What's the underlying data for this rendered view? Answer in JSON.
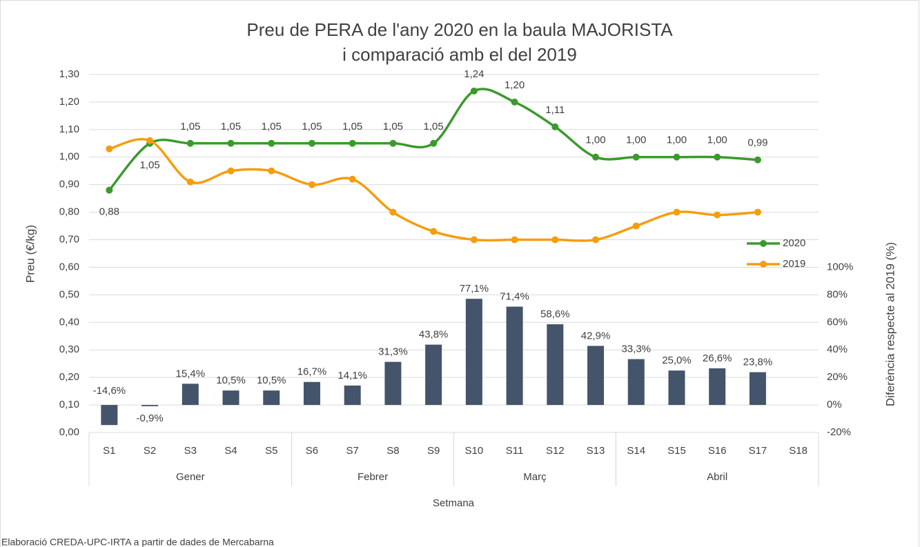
{
  "chart_data": {
    "type": "bar-line",
    "title": [
      "Preu de PERA de l'any 2020 en la baula MAJORISTA",
      "i comparació amb el del 2019"
    ],
    "categories": [
      "S1",
      "S2",
      "S3",
      "S4",
      "S5",
      "S6",
      "S7",
      "S8",
      "S9",
      "S10",
      "S11",
      "S12",
      "S13",
      "S14",
      "S15",
      "S16",
      "S17",
      "S18"
    ],
    "category_groups": [
      {
        "label": "Gener",
        "start": 0,
        "end": 4
      },
      {
        "label": "Febrer",
        "start": 5,
        "end": 8
      },
      {
        "label": "Març",
        "start": 9,
        "end": 12
      },
      {
        "label": "Abril",
        "start": 13,
        "end": 17
      }
    ],
    "x_label": "Setmana",
    "y_label": "Preu (€/kg)",
    "y2_label": "Diferència respecte al 2019 (%)",
    "ylim": [
      0,
      1.3
    ],
    "yticks": [
      {
        "value": 0,
        "label": "0,00"
      },
      {
        "value": 0.1,
        "label": "0,10"
      },
      {
        "value": 0.2,
        "label": "0,20"
      },
      {
        "value": 0.3,
        "label": "0,30"
      },
      {
        "value": 0.4,
        "label": "0,40"
      },
      {
        "value": 0.5,
        "label": "0,50"
      },
      {
        "value": 0.6,
        "label": "0,60"
      },
      {
        "value": 0.7,
        "label": "0,70"
      },
      {
        "value": 0.8,
        "label": "0,80"
      },
      {
        "value": 0.9,
        "label": "0,90"
      },
      {
        "value": 1.0,
        "label": "1,00"
      },
      {
        "value": 1.1,
        "label": "1,10"
      },
      {
        "value": 1.2,
        "label": "1,20"
      },
      {
        "value": 1.3,
        "label": "1,30"
      }
    ],
    "y2lim": [
      -20,
      240
    ],
    "y2ticks": [
      {
        "value": -20,
        "label": "-20%"
      },
      {
        "value": 0,
        "label": "0%"
      },
      {
        "value": 20,
        "label": "20%"
      },
      {
        "value": 40,
        "label": "40%"
      },
      {
        "value": 60,
        "label": "60%"
      },
      {
        "value": 80,
        "label": "80%"
      },
      {
        "value": 100,
        "label": "100%"
      }
    ],
    "grid": true,
    "series": [
      {
        "name": "Diferència",
        "type": "bar",
        "axis": "y2",
        "color": "#44546a",
        "values": [
          -14.6,
          -0.9,
          15.4,
          10.5,
          10.5,
          16.7,
          14.1,
          31.3,
          43.8,
          77.1,
          71.4,
          58.6,
          42.9,
          33.3,
          25.0,
          26.6,
          23.8,
          null
        ],
        "value_labels": [
          "-14,6%",
          "-0,9%",
          "15,4%",
          "10,5%",
          "10,5%",
          "16,7%",
          "14,1%",
          "31,3%",
          "43,8%",
          "77,1%",
          "71,4%",
          "58,6%",
          "42,9%",
          "33,3%",
          "25,0%",
          "26,6%",
          "23,8%",
          null
        ]
      },
      {
        "name": "2020",
        "type": "line",
        "color": "#3a9a2c",
        "values": [
          0.88,
          1.05,
          1.05,
          1.05,
          1.05,
          1.05,
          1.05,
          1.05,
          1.05,
          1.24,
          1.2,
          1.11,
          1.0,
          1.0,
          1.0,
          1.0,
          0.99,
          null
        ],
        "value_labels": [
          "0,88",
          "1,05",
          "1,05",
          "1,05",
          "1,05",
          "1,05",
          "1,05",
          "1,05",
          "1,05",
          "1,24",
          "1,20",
          "1,11",
          "1,00",
          "1,00",
          "1,00",
          "1,00",
          "0,99",
          null
        ]
      },
      {
        "name": "2019",
        "type": "line",
        "color": "#f59d0f",
        "values": [
          1.03,
          1.06,
          0.91,
          0.95,
          0.95,
          0.9,
          0.92,
          0.8,
          0.73,
          0.7,
          0.7,
          0.7,
          0.7,
          0.75,
          0.8,
          0.79,
          0.8,
          null
        ]
      }
    ],
    "legend": "right",
    "source": "Elaboració CREDA-UPC-IRTA a partir de dades de Mercabarna"
  }
}
